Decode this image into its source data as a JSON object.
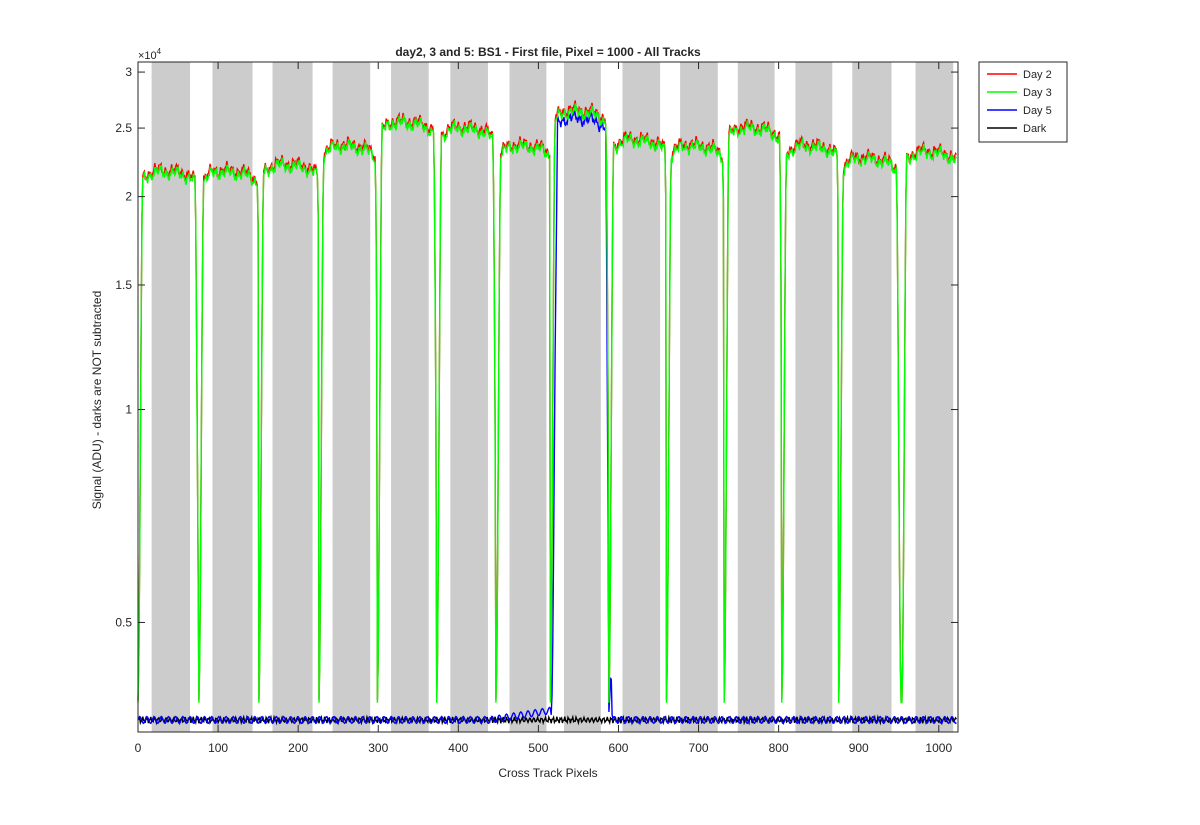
{
  "chart_data": {
    "type": "line",
    "title": "day2, 3 and 5: BS1 - First file, Pixel = 1000 - All Tracks",
    "xlabel": "Cross Track Pixels",
    "ylabel": "Signal (ADU) - darks are NOT subtracted",
    "y_exponent_label": "×10",
    "y_exponent_power": "4",
    "y_scale": "log",
    "xlim": [
      0,
      1024
    ],
    "ylim": [
      3500,
      31000
    ],
    "x_ticks": [
      0,
      100,
      200,
      300,
      400,
      500,
      600,
      700,
      800,
      900,
      1000
    ],
    "x_tick_labels": [
      "0",
      "100",
      "200",
      "300",
      "400",
      "500",
      "600",
      "700",
      "800",
      "900",
      "1000"
    ],
    "y_ticks": [
      5000,
      10000,
      15000,
      20000,
      25000,
      30000
    ],
    "y_tick_labels": [
      "0.5",
      "1",
      "1.5",
      "2",
      "2.5",
      "3"
    ],
    "legend_position": "outside-top-right",
    "shaded_bands": [
      [
        17,
        65
      ],
      [
        93,
        143
      ],
      [
        168,
        218
      ],
      [
        243,
        290
      ],
      [
        316,
        363
      ],
      [
        390,
        437
      ],
      [
        464,
        510
      ],
      [
        532,
        578
      ],
      [
        605,
        652
      ],
      [
        677,
        724
      ],
      [
        749,
        795
      ],
      [
        821,
        867
      ],
      [
        892,
        941
      ],
      [
        971,
        1018
      ]
    ],
    "series": [
      {
        "name": "Day 2",
        "color": "#ff0000"
      },
      {
        "name": "Day 3",
        "color": "#00ff00"
      },
      {
        "name": "Day 5",
        "color": "#0000ff"
      },
      {
        "name": "Dark",
        "color": "#000000"
      }
    ]
  }
}
